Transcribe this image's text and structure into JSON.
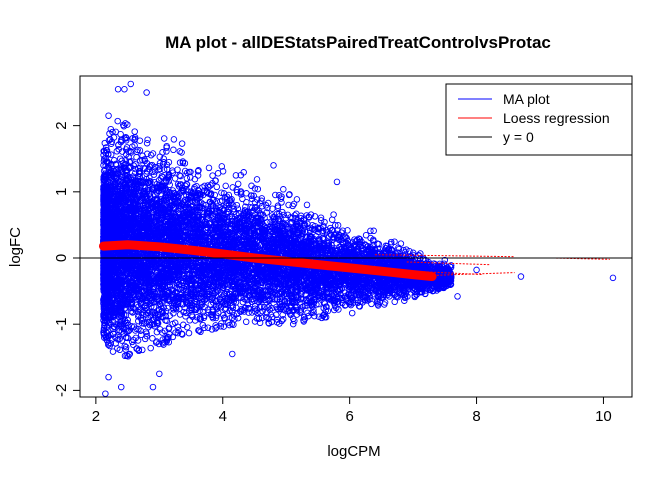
{
  "chart_data": {
    "type": "scatter",
    "title": "MA plot - allDEStatsPairedTreatControlvsProtac",
    "xlabel": "logCPM",
    "ylabel": "logFC",
    "xlim": [
      1.75,
      10.45
    ],
    "ylim": [
      -2.1,
      2.75
    ],
    "xticks": [
      2,
      4,
      6,
      8,
      10
    ],
    "yticks": [
      -2,
      -1,
      0,
      1,
      2
    ],
    "legend": {
      "placement": "top-right",
      "entries": [
        {
          "label": "MA plot",
          "color": "#0000FF"
        },
        {
          "label": "Loess regression",
          "color": "#FF0000"
        },
        {
          "label": "y = 0",
          "color": "#000000"
        }
      ]
    },
    "series": [
      {
        "name": "MA plot",
        "kind": "points",
        "color": "#0000FF",
        "x": [
          2.12,
          2.2,
          2.3,
          2.4,
          2.5,
          2.6,
          2.75,
          2.9,
          3.0,
          3.2,
          3.4,
          3.6,
          3.8,
          4.0,
          4.2,
          4.5,
          4.8,
          5.1,
          5.4,
          5.7,
          6.0,
          6.3,
          6.6,
          6.9,
          7.2,
          7.5,
          7.8,
          8.0,
          8.3,
          8.7,
          10.15
        ],
        "y_upper": [
          1.75,
          1.9,
          2.05,
          2.1,
          2.05,
          2.0,
          1.95,
          1.9,
          1.85,
          1.8,
          1.75,
          1.65,
          1.55,
          1.45,
          1.35,
          1.25,
          1.15,
          1.0,
          0.9,
          0.7,
          0.6,
          0.45,
          0.35,
          0.2,
          0.1,
          0.05,
          0.02,
          0.01,
          0.0,
          -0.05,
          -0.05
        ],
        "y_lower": [
          -1.2,
          -1.4,
          -1.5,
          -1.55,
          -1.5,
          -1.45,
          -1.45,
          -1.4,
          -1.35,
          -1.25,
          -1.2,
          -1.15,
          -1.1,
          -1.05,
          -1.0,
          -1.0,
          -1.0,
          -1.0,
          -0.95,
          -0.9,
          -0.85,
          -0.8,
          -0.7,
          -0.65,
          -0.55,
          -0.45,
          -0.3,
          -0.2,
          -0.15,
          -0.25,
          -0.3
        ],
        "outliers": [
          [
            2.35,
            2.55
          ],
          [
            2.45,
            2.55
          ],
          [
            2.55,
            2.63
          ],
          [
            2.8,
            2.5
          ],
          [
            2.2,
            2.15
          ],
          [
            2.15,
            -2.05
          ],
          [
            2.2,
            -1.8
          ],
          [
            2.4,
            -1.95
          ],
          [
            2.9,
            -1.95
          ],
          [
            3.0,
            -1.75
          ],
          [
            4.15,
            -1.45
          ],
          [
            5.8,
            1.15
          ],
          [
            4.8,
            1.4
          ],
          [
            7.7,
            -0.58
          ],
          [
            8.7,
            -0.28
          ],
          [
            10.15,
            -0.3
          ],
          [
            8.0,
            -0.18
          ],
          [
            6.6,
            0.0
          ]
        ]
      },
      {
        "name": "Loess regression",
        "kind": "line",
        "color": "#FF0000",
        "x": [
          2.12,
          2.5,
          3.0,
          3.5,
          4.0,
          4.5,
          5.0,
          5.5,
          6.0,
          6.5,
          7.0,
          7.3
        ],
        "y": [
          0.18,
          0.2,
          0.17,
          0.12,
          0.06,
          0.0,
          -0.05,
          -0.1,
          -0.15,
          -0.2,
          -0.25,
          -0.28
        ]
      },
      {
        "name": "y = 0",
        "kind": "hline",
        "color": "#000000",
        "y": 0
      }
    ]
  }
}
